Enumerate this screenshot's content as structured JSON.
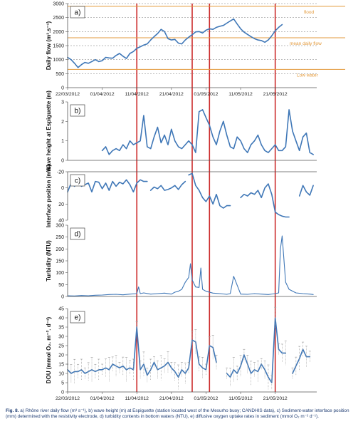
{
  "colors": {
    "series": "#3f77b7",
    "event": "#cc2b2b",
    "threshold": "#e39a3c",
    "axis": "#555555",
    "grid": "#777777",
    "caption": "#1f3d73",
    "errorbar": "#999999"
  },
  "caption": {
    "label": "Fig. 8.",
    "text": "a) Rhône river daily flow (m³ s⁻¹), b) wave height (m) at Espiguette (station located west of the Mesurho buoy; CANDHIS data), c) Sediment-water interface position (mm) determined with the resistivity electrode, d) turbidity contents in bottom waters (NTU), e) diffusive oxygen uptake rates in sediment (mmol O₂ m⁻² d⁻¹)."
  },
  "chart_data": [
    {
      "panel": "a)",
      "type": "line",
      "ylabel": "Daily flow (m³.s⁻¹)",
      "ylim": [
        0,
        3000
      ],
      "yticks": [
        0,
        500,
        1000,
        1500,
        2000,
        2500,
        3000
      ],
      "xticks": [
        "22/03/2012",
        "01/04/2012",
        "11/04/2012",
        "21/04/2012",
        "01/05/2012",
        "11/05/2012",
        "21/05/2012"
      ],
      "x_start": "22/03/2012",
      "x_end": "01/06/2012",
      "thresholds": [
        {
          "label": "flood",
          "value": 2900
        },
        {
          "label": "mean daily flow",
          "value": 1780
        },
        {
          "label": "Low water",
          "value": 650
        }
      ],
      "series": [
        {
          "x": [
            0,
            1,
            2,
            3,
            4,
            5,
            6,
            7,
            8,
            9,
            10,
            11,
            12,
            13,
            14,
            15,
            16,
            17,
            18,
            19,
            20,
            21,
            22,
            23,
            24,
            25,
            26,
            27,
            28,
            29,
            30,
            31,
            32,
            33,
            34,
            35,
            36,
            37,
            38,
            39,
            40,
            41,
            42,
            43,
            44,
            45,
            46,
            47,
            48,
            49,
            50,
            51,
            52,
            53,
            54,
            55,
            56,
            57,
            58,
            59,
            60,
            61,
            62
          ],
          "values": [
            1080,
            1000,
            870,
            720,
            820,
            900,
            870,
            930,
            1000,
            930,
            960,
            1080,
            1060,
            1050,
            1150,
            1220,
            1120,
            1040,
            1220,
            1290,
            1400,
            1460,
            1520,
            1560,
            1700,
            1820,
            1930,
            2080,
            2000,
            1750,
            1700,
            1720,
            1590,
            1560,
            1700,
            1800,
            1890,
            1990,
            2000,
            1950,
            2050,
            2100,
            2080,
            2150,
            2190,
            2220,
            2300,
            2380,
            2450,
            2270,
            2100,
            1980,
            1900,
            1820,
            1750,
            1700,
            1680,
            1620,
            1700,
            1850,
            2030,
            2150,
            2250
          ]
        }
      ]
    },
    {
      "panel": "b)",
      "type": "line",
      "ylabel": "Wave height at Espiguette (m)",
      "ylim": [
        0,
        3
      ],
      "yticks": [
        0,
        1,
        2,
        3
      ],
      "series": [
        {
          "x": [
            10,
            11,
            12,
            13,
            14,
            15,
            16,
            17,
            18,
            19,
            20,
            21,
            22,
            23,
            24,
            25,
            26,
            27,
            28,
            29,
            30,
            31,
            32,
            33,
            34,
            35,
            36,
            37,
            38,
            39,
            40,
            41,
            42,
            43,
            44,
            45,
            46,
            47,
            48,
            49,
            50,
            51,
            52,
            53,
            54,
            55,
            56,
            57,
            58,
            59,
            60,
            61,
            62,
            63,
            64,
            65,
            66,
            67,
            68,
            69,
            70,
            71
          ],
          "values": [
            0.5,
            0.7,
            0.3,
            0.5,
            0.6,
            0.5,
            0.8,
            0.6,
            1.0,
            0.8,
            0.9,
            1.0,
            2.3,
            0.7,
            0.6,
            1.2,
            1.7,
            0.9,
            1.3,
            0.8,
            1.6,
            1.0,
            0.7,
            0.6,
            0.8,
            1.0,
            0.8,
            0.4,
            2.5,
            2.6,
            2.2,
            1.8,
            1.2,
            0.8,
            1.5,
            2.0,
            1.3,
            0.7,
            0.6,
            1.2,
            1.0,
            0.6,
            0.4,
            0.8,
            1.0,
            1.3,
            0.8,
            0.5,
            0.4,
            0.6,
            0.8,
            0.5,
            0.5,
            0.7,
            2.6,
            1.5,
            1.0,
            0.5,
            1.2,
            1.4,
            0.4,
            0.3
          ]
        }
      ]
    },
    {
      "panel": "c)",
      "type": "line",
      "ylabel": "Interface position (mm)",
      "ylim": [
        -20,
        40
      ],
      "inverted": true,
      "yticks": [
        -20,
        0,
        20,
        40
      ],
      "series": [
        {
          "x": [
            0,
            1,
            2,
            3,
            4,
            5,
            6,
            7,
            8,
            9,
            10,
            11,
            12,
            13,
            14,
            15,
            16,
            17,
            18,
            19,
            20,
            21,
            22,
            23
          ],
          "values": [
            5,
            -6,
            -2,
            -7,
            -2,
            -4,
            -6,
            5,
            -8,
            -7,
            1,
            -6,
            3,
            -8,
            -2,
            -7,
            -5,
            -10,
            -4,
            5,
            -6,
            -10,
            -8,
            -8
          ]
        },
        {
          "x": [
            24,
            25,
            26,
            27,
            28,
            29,
            30,
            31,
            32,
            33,
            34
          ],
          "values": [
            3,
            -1,
            1,
            -3,
            3,
            2,
            0,
            -3,
            2,
            -4,
            -8
          ]
        },
        {
          "x": [
            35,
            36,
            37,
            38,
            39,
            40,
            41,
            42,
            43,
            44,
            45,
            46,
            47
          ],
          "values": [
            -16,
            -18,
            -3,
            3,
            12,
            17,
            10,
            20,
            8,
            22,
            25,
            22,
            22
          ]
        },
        {
          "x": [
            50,
            51,
            52,
            53,
            54,
            55,
            56,
            57,
            58,
            59,
            60,
            61,
            62,
            63,
            64
          ],
          "values": [
            12,
            8,
            10,
            6,
            8,
            3,
            12,
            0,
            -5,
            8,
            30,
            33,
            35,
            36,
            36
          ]
        },
        {
          "x": [
            67,
            68,
            69,
            70,
            71
          ],
          "values": [
            10,
            -3,
            5,
            9,
            -3
          ]
        }
      ]
    },
    {
      "panel": "d)",
      "type": "line",
      "ylabel": "Turbidity (NTU)",
      "ylim": [
        0,
        300
      ],
      "yticks": [
        0,
        50,
        100,
        150,
        200,
        250,
        300
      ],
      "series": [
        {
          "x": [
            0,
            2,
            4,
            6,
            8,
            10,
            12,
            14,
            16,
            18,
            20,
            20.5,
            21,
            22,
            24,
            26,
            28,
            30,
            31,
            32,
            33,
            34,
            35,
            35.5,
            36,
            37,
            38,
            38.5,
            39,
            40,
            42,
            44,
            46,
            47,
            48,
            50,
            52,
            54,
            56,
            58,
            60,
            61,
            61.5,
            62,
            63,
            64,
            66,
            68,
            70,
            71
          ],
          "values": [
            3,
            2,
            4,
            3,
            5,
            6,
            8,
            9,
            7,
            10,
            12,
            40,
            12,
            15,
            10,
            12,
            14,
            10,
            18,
            22,
            30,
            60,
            80,
            138,
            70,
            40,
            38,
            120,
            30,
            22,
            14,
            12,
            9,
            12,
            85,
            10,
            9,
            12,
            10,
            8,
            12,
            15,
            200,
            255,
            60,
            30,
            15,
            12,
            10,
            8
          ]
        }
      ]
    },
    {
      "panel": "e)",
      "type": "line",
      "ylabel": "DOU (mmol O₂. m⁻². d⁻¹)",
      "ylim": [
        0,
        45
      ],
      "yticks": [
        0,
        5,
        10,
        15,
        20,
        25,
        30,
        35,
        40,
        45
      ],
      "event_lines_x": [
        20,
        36,
        41,
        60
      ],
      "series": [
        {
          "x": [
            0,
            1,
            2,
            3,
            4,
            5,
            6,
            7,
            8,
            9,
            10,
            11,
            12,
            13,
            14,
            15,
            16,
            17,
            18,
            19,
            20
          ],
          "values": [
            12,
            10,
            11,
            11,
            12,
            10,
            11,
            12,
            11,
            12,
            12,
            13,
            12,
            15,
            14,
            13,
            14,
            12,
            13,
            12,
            35
          ]
        },
        {
          "x": [
            20,
            21,
            22,
            23,
            24,
            25,
            26,
            27,
            28,
            29,
            30,
            31,
            32,
            33,
            34,
            35,
            36,
            37,
            38,
            39,
            40,
            41,
            42,
            43
          ],
          "values": [
            35,
            12,
            15,
            9,
            12,
            16,
            12,
            13,
            14,
            16,
            13,
            11,
            8,
            12,
            10,
            13,
            28,
            27,
            15,
            13,
            12,
            25,
            24,
            16
          ]
        },
        {
          "x": [
            46,
            47,
            48,
            49,
            50,
            51,
            52,
            53,
            54,
            55,
            56,
            57,
            58,
            59,
            60,
            61,
            62,
            63
          ],
          "values": [
            10,
            8,
            12,
            10,
            14,
            20,
            15,
            10,
            12,
            11,
            15,
            12,
            8,
            5,
            40,
            23,
            21,
            21
          ]
        },
        {
          "x": [
            65,
            66,
            67,
            68,
            69,
            70
          ],
          "values": [
            10,
            14,
            18,
            23,
            19,
            19
          ]
        }
      ]
    }
  ]
}
